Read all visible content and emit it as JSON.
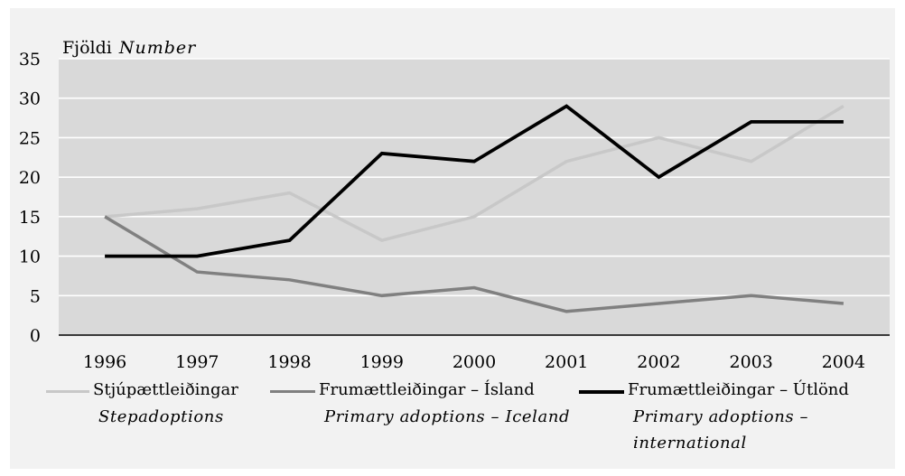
{
  "chart_data": {
    "type": "line",
    "ylabel": "Fjöldi",
    "ylabel_en": "Number",
    "categories": [
      "1996",
      "1997",
      "1998",
      "1999",
      "2000",
      "2001",
      "2002",
      "2003",
      "2004"
    ],
    "ylim": [
      0,
      35
    ],
    "yticks": [
      0,
      5,
      10,
      15,
      20,
      25,
      30,
      35
    ],
    "grid": true,
    "legend_position": "bottom",
    "series": [
      {
        "name": "Stjúpættleiðingar",
        "name_en": "Stepadoptions",
        "color": "#c8c8c8",
        "values": [
          15,
          16,
          18,
          12,
          15,
          22,
          25,
          22,
          29
        ]
      },
      {
        "name": "Frumættleiðingar – Ísland",
        "name_en": "Primary adoptions – Iceland",
        "color": "#808080",
        "values": [
          15,
          8,
          7,
          5,
          6,
          3,
          4,
          5,
          4
        ]
      },
      {
        "name": "Frumættleiðingar – Útlönd",
        "name_en": "Primary adoptions – international",
        "name_en_lines": [
          "Primary adoptions –",
          "international"
        ],
        "color": "#000000",
        "values": [
          10,
          10,
          12,
          23,
          22,
          29,
          20,
          27,
          27
        ]
      }
    ]
  }
}
